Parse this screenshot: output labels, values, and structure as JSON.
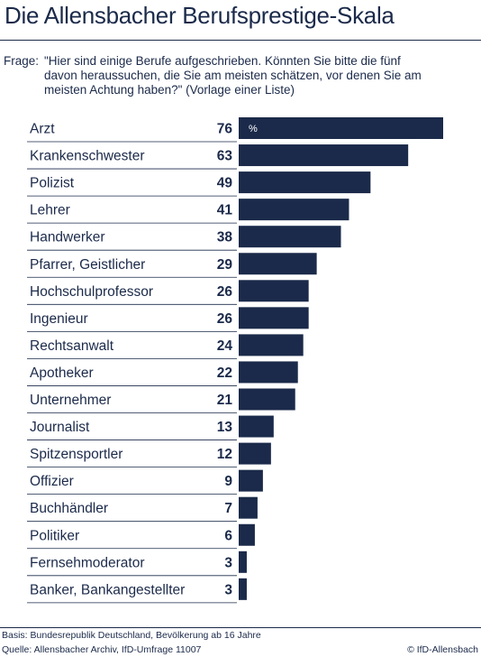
{
  "title": "Die Allensbacher Berufsprestige-Skala",
  "question": {
    "label": "Frage:",
    "text": "\"Hier sind einige Berufe aufgeschrieben. Könnten Sie bitte die fünf davon heraussuchen, die Sie am meisten schätzen, vor denen Sie am meisten Achtung haben?\" (Vorlage einer Liste)"
  },
  "chart_data": {
    "type": "bar",
    "orientation": "horizontal",
    "unit_label": "%",
    "bar_color": "#1b2a4a",
    "categories": [
      "Arzt",
      "Krankenschwester",
      "Polizist",
      "Lehrer",
      "Handwerker",
      "Pfarrer, Geistlicher",
      "Hochschulprofessor",
      "Ingenieur",
      "Rechtsanwalt",
      "Apotheker",
      "Unternehmer",
      "Journalist",
      "Spitzensportler",
      "Offizier",
      "Buchhändler",
      "Politiker",
      "Fernsehmoderator",
      "Banker, Bankangestellter"
    ],
    "values": [
      76,
      63,
      49,
      41,
      38,
      29,
      26,
      26,
      24,
      22,
      21,
      13,
      12,
      9,
      7,
      6,
      3,
      3
    ]
  },
  "footer": {
    "basis": "Basis: Bundesrepublik Deutschland, Bevölkerung ab 16 Jahre",
    "quelle": "Quelle: Allensbacher Archiv, IfD-Umfrage 11007",
    "copyright": "© IfD-Allensbach"
  }
}
